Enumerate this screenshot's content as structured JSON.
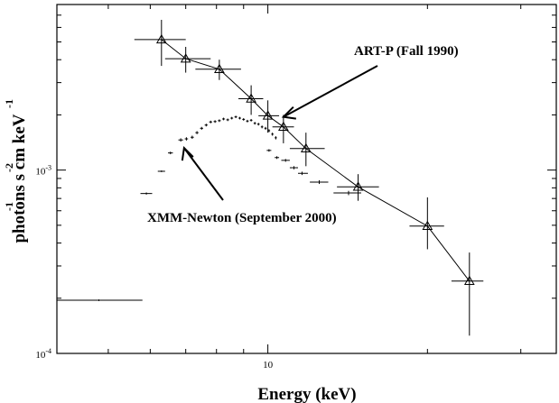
{
  "chart_data": {
    "type": "scatter",
    "x_scale": "log",
    "y_scale": "log",
    "xlim": [
      4.0,
      35.0
    ],
    "ylim": [
      0.0001,
      0.008
    ],
    "grid": false,
    "xlabel": "Energy (keV)",
    "ylabel": {
      "base": "photons  s  cm  keV",
      "sup_s": "-1",
      "sup_cm": "-2",
      "sup_kev": "-1"
    },
    "x_ticks": [
      {
        "value": 10,
        "label": "10"
      }
    ],
    "y_ticks": [
      {
        "value": 0.0001,
        "label_base": "10",
        "label_exp": "-4"
      },
      {
        "value": 0.001,
        "label_base": "10",
        "label_exp": "-3"
      }
    ],
    "series": [
      {
        "name": "ART-P  (Fall 1990)",
        "marker": "triangle",
        "connected": true,
        "points": [
          {
            "x": 6.3,
            "xerr": [
              5.6,
              7.0
            ],
            "y": 0.00515,
            "yerr": [
              0.0037,
              0.0066
            ]
          },
          {
            "x": 7.0,
            "xerr": [
              6.4,
              7.8
            ],
            "y": 0.00405,
            "yerr": [
              0.0034,
              0.0047
            ]
          },
          {
            "x": 8.1,
            "xerr": [
              7.3,
              8.9
            ],
            "y": 0.00355,
            "yerr": [
              0.0031,
              0.004
            ]
          },
          {
            "x": 9.3,
            "xerr": [
              8.8,
              9.8
            ],
            "y": 0.00245,
            "yerr": [
              0.002,
              0.0029
            ]
          },
          {
            "x": 10.0,
            "xerr": [
              9.6,
              10.5
            ],
            "y": 0.00198,
            "yerr": [
              0.0016,
              0.0024
            ]
          },
          {
            "x": 10.7,
            "xerr": [
              10.2,
              11.2
            ],
            "y": 0.00172,
            "yerr": [
              0.0014,
              0.002
            ]
          },
          {
            "x": 11.8,
            "xerr": [
              11.0,
              12.8
            ],
            "y": 0.00131,
            "yerr": [
              0.00105,
              0.0016
            ]
          },
          {
            "x": 14.8,
            "xerr": [
              13.5,
              16.2
            ],
            "y": 0.00081,
            "yerr": [
              0.00068,
              0.00095
            ]
          },
          {
            "x": 20.0,
            "xerr": [
              18.5,
              21.5
            ],
            "y": 0.000495,
            "yerr": [
              0.00037,
              0.00071
            ]
          },
          {
            "x": 24.0,
            "xerr": [
              22.2,
              25.5
            ],
            "y": 0.000248,
            "yerr": [
              0.000125,
              0.000355
            ]
          }
        ]
      },
      {
        "name": "XMM-Newton (September 2000)",
        "marker": "cross",
        "connected": false,
        "points": [
          {
            "x": 4.8,
            "xerr": [
              4.0,
              5.8
            ],
            "y": 0.000195,
            "yerr": [
              0.000193,
              0.000197
            ]
          },
          {
            "x": 5.9,
            "xerr": [
              5.75,
              6.05
            ],
            "y": 0.000745,
            "yerr": [
              0.000735,
              0.000755
            ]
          },
          {
            "x": 6.3,
            "xerr": [
              6.2,
              6.4
            ],
            "y": 0.000985,
            "yerr": [
              0.000975,
              0.000995
            ]
          },
          {
            "x": 6.55,
            "xerr": [
              6.48,
              6.62
            ],
            "y": 0.00124,
            "yerr": [
              0.00122,
              0.00126
            ]
          },
          {
            "x": 6.85,
            "xerr": [
              6.78,
              6.92
            ],
            "y": 0.00146,
            "yerr": [
              0.00143,
              0.00149
            ]
          },
          {
            "x": 7.02,
            "xerr": [
              6.97,
              7.07
            ],
            "y": 0.00148,
            "yerr": [
              0.00145,
              0.00151
            ]
          },
          {
            "x": 7.2,
            "xerr": [
              7.15,
              7.25
            ],
            "y": 0.00151,
            "yerr": [
              0.00148,
              0.00154
            ]
          },
          {
            "x": 7.35,
            "xerr": [
              7.3,
              7.4
            ],
            "y": 0.0016,
            "yerr": [
              0.00157,
              0.00163
            ]
          },
          {
            "x": 7.5,
            "xerr": [
              7.45,
              7.55
            ],
            "y": 0.00169,
            "yerr": [
              0.00166,
              0.00172
            ]
          },
          {
            "x": 7.65,
            "xerr": [
              7.6,
              7.7
            ],
            "y": 0.00176,
            "yerr": [
              0.00173,
              0.00179
            ]
          },
          {
            "x": 7.8,
            "xerr": [
              7.75,
              7.85
            ],
            "y": 0.00183,
            "yerr": [
              0.0018,
              0.00186
            ]
          },
          {
            "x": 7.95,
            "xerr": [
              7.9,
              8.0
            ],
            "y": 0.00184,
            "yerr": [
              0.00181,
              0.00187
            ]
          },
          {
            "x": 8.1,
            "xerr": [
              8.05,
              8.15
            ],
            "y": 0.00186,
            "yerr": [
              0.00183,
              0.00189
            ]
          },
          {
            "x": 8.25,
            "xerr": [
              8.2,
              8.3
            ],
            "y": 0.0019,
            "yerr": [
              0.00187,
              0.00193
            ]
          },
          {
            "x": 8.4,
            "xerr": [
              8.35,
              8.45
            ],
            "y": 0.00188,
            "yerr": [
              0.00185,
              0.00191
            ]
          },
          {
            "x": 8.55,
            "xerr": [
              8.5,
              8.6
            ],
            "y": 0.00192,
            "yerr": [
              0.00189,
              0.00195
            ]
          },
          {
            "x": 8.7,
            "xerr": [
              8.65,
              8.75
            ],
            "y": 0.00195,
            "yerr": [
              0.00192,
              0.00198
            ]
          },
          {
            "x": 8.85,
            "xerr": [
              8.8,
              8.9
            ],
            "y": 0.00192,
            "yerr": [
              0.00189,
              0.00195
            ]
          },
          {
            "x": 9.0,
            "xerr": [
              8.95,
              9.05
            ],
            "y": 0.00189,
            "yerr": [
              0.00186,
              0.00192
            ]
          },
          {
            "x": 9.15,
            "xerr": [
              9.1,
              9.2
            ],
            "y": 0.00185,
            "yerr": [
              0.00182,
              0.00188
            ]
          },
          {
            "x": 9.3,
            "xerr": [
              9.25,
              9.35
            ],
            "y": 0.00187,
            "yerr": [
              0.00184,
              0.0019
            ]
          },
          {
            "x": 9.45,
            "xerr": [
              9.4,
              9.5
            ],
            "y": 0.0018,
            "yerr": [
              0.00177,
              0.00183
            ]
          },
          {
            "x": 9.6,
            "xerr": [
              9.55,
              9.65
            ],
            "y": 0.00178,
            "yerr": [
              0.00175,
              0.00181
            ]
          },
          {
            "x": 9.75,
            "xerr": [
              9.7,
              9.8
            ],
            "y": 0.00172,
            "yerr": [
              0.00169,
              0.00175
            ]
          },
          {
            "x": 9.9,
            "xerr": [
              9.85,
              9.95
            ],
            "y": 0.00169,
            "yerr": [
              0.00166,
              0.00172
            ]
          },
          {
            "x": 10.05,
            "xerr": [
              10.0,
              10.1
            ],
            "y": 0.00164,
            "yerr": [
              0.00161,
              0.00167
            ]
          },
          {
            "x": 10.2,
            "xerr": [
              10.15,
              10.25
            ],
            "y": 0.00157,
            "yerr": [
              0.00154,
              0.0016
            ]
          },
          {
            "x": 10.35,
            "xerr": [
              10.3,
              10.4
            ],
            "y": 0.0015,
            "yerr": [
              0.00147,
              0.00153
            ]
          },
          {
            "x": 10.05,
            "xerr": [
              9.95,
              10.15
            ],
            "y": 0.00128,
            "yerr": [
              0.00126,
              0.0013
            ]
          },
          {
            "x": 10.4,
            "xerr": [
              10.3,
              10.5
            ],
            "y": 0.00117,
            "yerr": [
              0.00115,
              0.00119
            ]
          },
          {
            "x": 10.8,
            "xerr": [
              10.6,
              11.0
            ],
            "y": 0.00113,
            "yerr": [
              0.00111,
              0.00115
            ]
          },
          {
            "x": 11.2,
            "xerr": [
              11.0,
              11.4
            ],
            "y": 0.00103,
            "yerr": [
              0.00101,
              0.00105
            ]
          },
          {
            "x": 11.6,
            "xerr": [
              11.4,
              11.9
            ],
            "y": 0.00096,
            "yerr": [
              0.00094,
              0.00098
            ]
          },
          {
            "x": 12.5,
            "xerr": [
              12.0,
              13.0
            ],
            "y": 0.00086,
            "yerr": [
              0.00084,
              0.00088
            ]
          },
          {
            "x": 14.2,
            "xerr": [
              13.3,
              15.0
            ],
            "y": 0.00075,
            "yerr": [
              0.00073,
              0.00077
            ]
          }
        ]
      }
    ],
    "annotations": [
      {
        "text": "ART-P  (Fall 1990)",
        "points_to": {
          "x": 10.7,
          "y": 0.00195
        }
      },
      {
        "text": "XMM-Newton (September 2000)",
        "points_to": {
          "x": 6.95,
          "y": 0.00132
        }
      }
    ]
  }
}
